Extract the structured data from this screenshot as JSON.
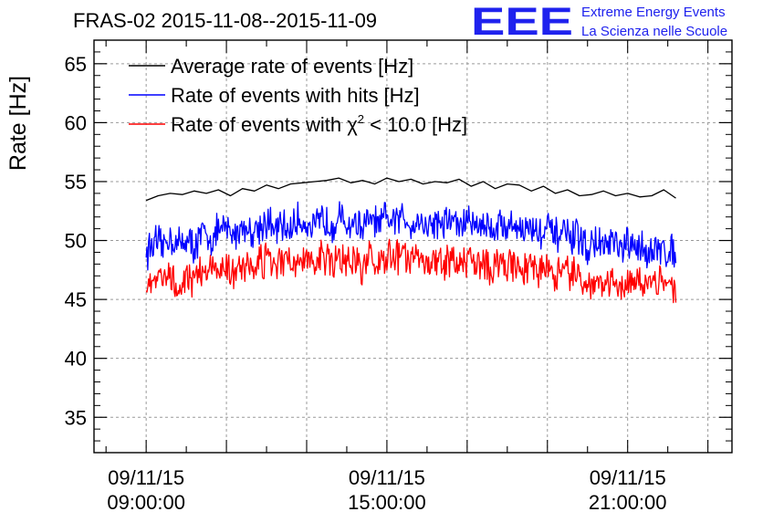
{
  "chart_data": {
    "type": "line",
    "title": "FRAS-02 2015-11-08--2015-11-09",
    "ylabel": "Rate [Hz]",
    "xlabel": "",
    "ylim": [
      32,
      67
    ],
    "xlim_hours": [
      7.7,
      23.6
    ],
    "y_ticks": [
      35,
      40,
      45,
      50,
      55,
      60,
      65
    ],
    "x_ticks": [
      {
        "hour": 9,
        "date": "09/11/15",
        "time": "09:00:00"
      },
      {
        "hour": 15,
        "date": "09/11/15",
        "time": "15:00:00"
      },
      {
        "hour": 21,
        "date": "09/11/15",
        "time": "21:00:00"
      }
    ],
    "grid": true,
    "legend_position": "top-left",
    "series": [
      {
        "name": "Average rate of events [Hz]",
        "color": "#000000",
        "x_hours": [
          9.0,
          9.3,
          9.6,
          9.9,
          10.2,
          10.5,
          10.8,
          11.1,
          11.4,
          11.7,
          12.0,
          12.3,
          12.6,
          12.9,
          13.2,
          13.5,
          13.8,
          14.1,
          14.4,
          14.7,
          15.0,
          15.3,
          15.6,
          15.9,
          16.2,
          16.5,
          16.8,
          17.1,
          17.4,
          17.7,
          18.0,
          18.3,
          18.6,
          18.9,
          19.2,
          19.5,
          19.8,
          20.1,
          20.4,
          20.7,
          21.0,
          21.3,
          21.6,
          21.9,
          22.2
        ],
        "values": [
          53.4,
          53.8,
          54.0,
          53.9,
          54.2,
          54.0,
          54.3,
          53.8,
          54.4,
          54.2,
          54.7,
          54.4,
          54.8,
          54.9,
          55.0,
          55.1,
          55.3,
          54.9,
          55.1,
          54.8,
          55.3,
          55.0,
          55.2,
          54.8,
          55.0,
          54.9,
          55.2,
          54.6,
          55.0,
          54.4,
          54.8,
          54.7,
          54.2,
          54.6,
          54.0,
          54.3,
          53.8,
          53.9,
          54.2,
          53.8,
          54.0,
          53.7,
          53.8,
          54.3,
          53.6
        ]
      },
      {
        "name": "Rate of events with hits [Hz]",
        "color": "#0000ff",
        "x_hours": [
          9.0,
          9.2,
          9.4,
          9.6,
          9.8,
          10.0,
          10.2,
          10.4,
          10.6,
          10.8,
          11.0,
          11.2,
          11.4,
          11.6,
          11.8,
          12.0,
          12.2,
          12.4,
          12.6,
          12.8,
          13.0,
          13.2,
          13.4,
          13.6,
          13.8,
          14.0,
          14.2,
          14.4,
          14.6,
          14.8,
          15.0,
          15.2,
          15.4,
          15.6,
          15.8,
          16.0,
          16.2,
          16.4,
          16.6,
          16.8,
          17.0,
          17.2,
          17.4,
          17.6,
          17.8,
          18.0,
          18.2,
          18.4,
          18.6,
          18.8,
          19.0,
          19.2,
          19.4,
          19.6,
          19.8,
          20.0,
          20.2,
          20.4,
          20.6,
          20.8,
          21.0,
          21.2,
          21.4,
          21.6,
          21.8,
          22.0,
          22.2
        ],
        "values": [
          49.0,
          49.8,
          49.5,
          50.3,
          49.6,
          50.2,
          49.4,
          50.6,
          50.1,
          50.8,
          51.0,
          50.4,
          51.3,
          50.7,
          51.2,
          51.6,
          50.8,
          51.2,
          50.9,
          51.8,
          51.4,
          51.0,
          51.9,
          51.3,
          52.0,
          51.2,
          51.6,
          51.0,
          51.8,
          51.2,
          51.9,
          51.5,
          52.1,
          51.4,
          51.8,
          51.1,
          51.7,
          51.3,
          51.9,
          51.2,
          51.7,
          51.3,
          51.6,
          50.9,
          51.5,
          51.1,
          51.4,
          50.8,
          51.2,
          50.6,
          51.0,
          50.3,
          50.7,
          50.0,
          50.4,
          49.2,
          49.8,
          49.4,
          49.9,
          49.1,
          49.6,
          49.2,
          49.5,
          48.8,
          49.4,
          48.9,
          49.2
        ]
      },
      {
        "name": "Rate of events with χ² < 10.0 [Hz]",
        "color": "#ff0000",
        "x_hours": [
          9.0,
          9.2,
          9.4,
          9.6,
          9.8,
          10.0,
          10.2,
          10.4,
          10.6,
          10.8,
          11.0,
          11.2,
          11.4,
          11.6,
          11.8,
          12.0,
          12.2,
          12.4,
          12.6,
          12.8,
          13.0,
          13.2,
          13.4,
          13.6,
          13.8,
          14.0,
          14.2,
          14.4,
          14.6,
          14.8,
          15.0,
          15.2,
          15.4,
          15.6,
          15.8,
          16.0,
          16.2,
          16.4,
          16.6,
          16.8,
          17.0,
          17.2,
          17.4,
          17.6,
          17.8,
          18.0,
          18.2,
          18.4,
          18.6,
          18.8,
          19.0,
          19.2,
          19.4,
          19.6,
          19.8,
          20.0,
          20.2,
          20.4,
          20.6,
          20.8,
          21.0,
          21.2,
          21.4,
          21.6,
          21.8,
          22.0,
          22.2
        ],
        "values": [
          46.2,
          47.0,
          46.5,
          47.4,
          46.3,
          46.9,
          46.8,
          47.6,
          47.1,
          47.8,
          47.5,
          47.2,
          48.1,
          47.6,
          48.0,
          48.3,
          47.7,
          48.2,
          47.9,
          48.6,
          48.2,
          47.8,
          48.7,
          48.1,
          48.8,
          47.9,
          48.4,
          47.7,
          48.6,
          48.0,
          48.8,
          48.3,
          48.9,
          48.2,
          48.6,
          47.9,
          48.5,
          48.1,
          48.7,
          48.0,
          48.5,
          48.1,
          48.4,
          47.6,
          48.3,
          47.8,
          48.2,
          47.5,
          48.0,
          47.3,
          47.8,
          47.0,
          47.4,
          46.8,
          47.1,
          46.1,
          46.6,
          46.3,
          46.8,
          45.9,
          46.5,
          46.1,
          46.4,
          45.7,
          46.3,
          45.8,
          46.1
        ]
      }
    ]
  },
  "legend": {
    "avg_label": "Average rate of events [Hz]",
    "hits_label": "Rate of events with hits [Hz]",
    "chi_prefix": "Rate of events with χ",
    "chi_sup": "2",
    "chi_suffix": " < 10.0 [Hz]"
  },
  "logo": {
    "mark": "EEE",
    "line1": "Extreme Energy Events",
    "line2": "La Scienza nelle Scuole",
    "color": "#1f22ee"
  }
}
